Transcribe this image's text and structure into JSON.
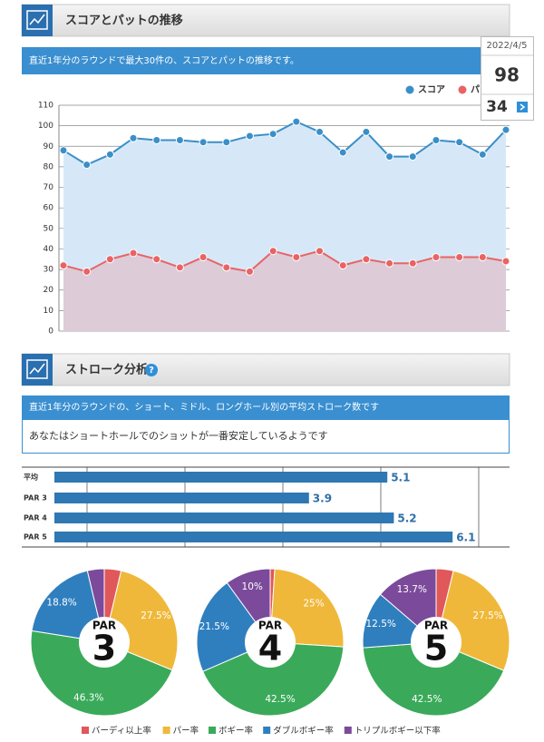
{
  "sections": [
    {
      "title": "スコアとパットの推移",
      "description": "直近1年分のラウンドで最大30件の、スコアとパットの推移です。"
    },
    {
      "title": "ストローク分析",
      "description": "直近1年分のラウンドの、ショート、ミドル、ロングホール別の平均ストローク数です",
      "message": "あなたはショートホールでのショットが一番安定しているようです"
    }
  ],
  "tooltip": {
    "date": "2022/4/5",
    "score": 98,
    "putt": 34
  },
  "chart_data": [
    {
      "type": "line",
      "categories": [
        null,
        null,
        null,
        null,
        null,
        null,
        null,
        null,
        null,
        null,
        null,
        null,
        null,
        null,
        null,
        null,
        null,
        null,
        null,
        null
      ],
      "series": [
        {
          "name": "スコア",
          "color": "#3a8fc8",
          "fill": "#d6e8f7",
          "values": [
            88,
            81,
            86,
            94,
            93,
            93,
            92,
            92,
            95,
            96,
            102,
            97,
            87,
            97,
            85,
            85,
            93,
            92,
            86,
            98
          ]
        },
        {
          "name": "パット",
          "color": "#e86464",
          "fill": "#ddcbd8",
          "values": [
            32,
            29,
            35,
            38,
            35,
            31,
            36,
            31,
            29,
            39,
            36,
            39,
            32,
            35,
            33,
            33,
            36,
            36,
            36,
            34
          ]
        }
      ],
      "ylim": [
        0,
        110
      ],
      "yticks": [
        0,
        10,
        20,
        30,
        40,
        50,
        60,
        70,
        80,
        90,
        100,
        110
      ],
      "grid": true,
      "legend": "top-right"
    },
    {
      "type": "bar",
      "orientation": "horizontal",
      "categories": [
        "平均",
        "PAR 3",
        "PAR 4",
        "PAR 5"
      ],
      "values": [
        5.1,
        3.9,
        5.2,
        6.1
      ],
      "color": "#2f78b4",
      "xlim": [
        0,
        7
      ],
      "xticks": [
        0.5,
        2,
        3.5,
        5,
        6.5
      ],
      "grid": true
    },
    {
      "type": "pie",
      "center_text": [
        "PAR",
        "3"
      ],
      "categories": [
        "バーディ以上率",
        "パー率",
        "ボギー率",
        "ダブルボギー率",
        "トリプルボギー以下率"
      ],
      "colors": [
        "#e0585a",
        "#f0b83a",
        "#3aaa5a",
        "#2f7fbf",
        "#7b4a9a"
      ],
      "values": [
        3.7,
        27.5,
        46.3,
        18.8,
        3.7
      ],
      "value_labels": [
        null,
        "27.5%",
        "46.3%",
        "18.8%",
        null
      ],
      "legend": "bottom"
    },
    {
      "type": "pie",
      "center_text": [
        "PAR",
        "4"
      ],
      "categories": [
        "バーディ以上率",
        "パー率",
        "ボギー率",
        "ダブルボギー率",
        "トリプルボギー以下率"
      ],
      "colors": [
        "#e0585a",
        "#f0b83a",
        "#3aaa5a",
        "#2f7fbf",
        "#7b4a9a"
      ],
      "values": [
        1.0,
        25,
        42.5,
        21.5,
        10
      ],
      "value_labels": [
        null,
        "25%",
        "42.5%",
        "21.5%",
        "10%"
      ]
    },
    {
      "type": "pie",
      "center_text": [
        "PAR",
        "5"
      ],
      "categories": [
        "バーディ以上率",
        "パー率",
        "ボギー率",
        "ダブルボギー率",
        "トリプルボギー以下率"
      ],
      "colors": [
        "#e0585a",
        "#f0b83a",
        "#3aaa5a",
        "#2f7fbf",
        "#7b4a9a"
      ],
      "values": [
        3.8,
        27.5,
        42.5,
        12.5,
        13.7
      ],
      "value_labels": [
        null,
        "27.5%",
        "42.5%",
        "12.5%",
        "13.7%"
      ]
    }
  ]
}
